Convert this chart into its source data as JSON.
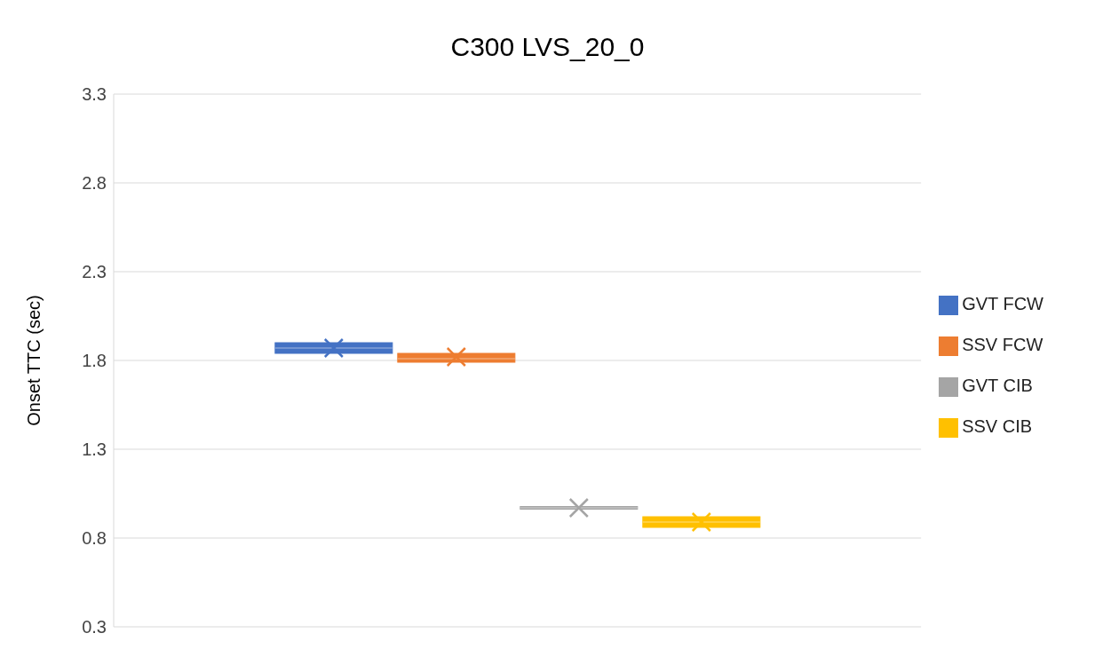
{
  "chart_data": {
    "type": "box",
    "title": "C300 LVS_20_0",
    "ylabel": "Onset TTC (sec)",
    "categories": [
      null
    ],
    "ylim": [
      0.3,
      3.3
    ],
    "yticks": [
      0.3,
      0.8,
      1.3,
      1.8,
      2.3,
      2.8,
      3.3
    ],
    "grid": "y",
    "legend": "right",
    "tick_labels": "y",
    "marker": "cross",
    "series": [
      {
        "name": "GVT FCW",
        "color": "#4472c4",
        "boxes": [
          {
            "low": 1.84,
            "q1": 1.84,
            "median": 1.87,
            "q3": 1.9,
            "high": 1.9,
            "mean": 1.87
          }
        ]
      },
      {
        "name": "SSV FCW",
        "color": "#ed7d31",
        "boxes": [
          {
            "low": 1.79,
            "q1": 1.79,
            "median": 1.81,
            "q3": 1.84,
            "high": 1.84,
            "mean": 1.82
          }
        ]
      },
      {
        "name": "GVT CIB",
        "color": "#a5a5a5",
        "boxes": [
          {
            "low": 0.97,
            "q1": 0.97,
            "median": 0.97,
            "q3": 0.97,
            "high": 0.97,
            "mean": 0.97
          }
        ]
      },
      {
        "name": "SSV CIB",
        "color": "#ffc000",
        "boxes": [
          {
            "low": 0.86,
            "q1": 0.86,
            "median": 0.89,
            "q3": 0.92,
            "high": 0.92,
            "mean": 0.89
          }
        ]
      }
    ]
  }
}
